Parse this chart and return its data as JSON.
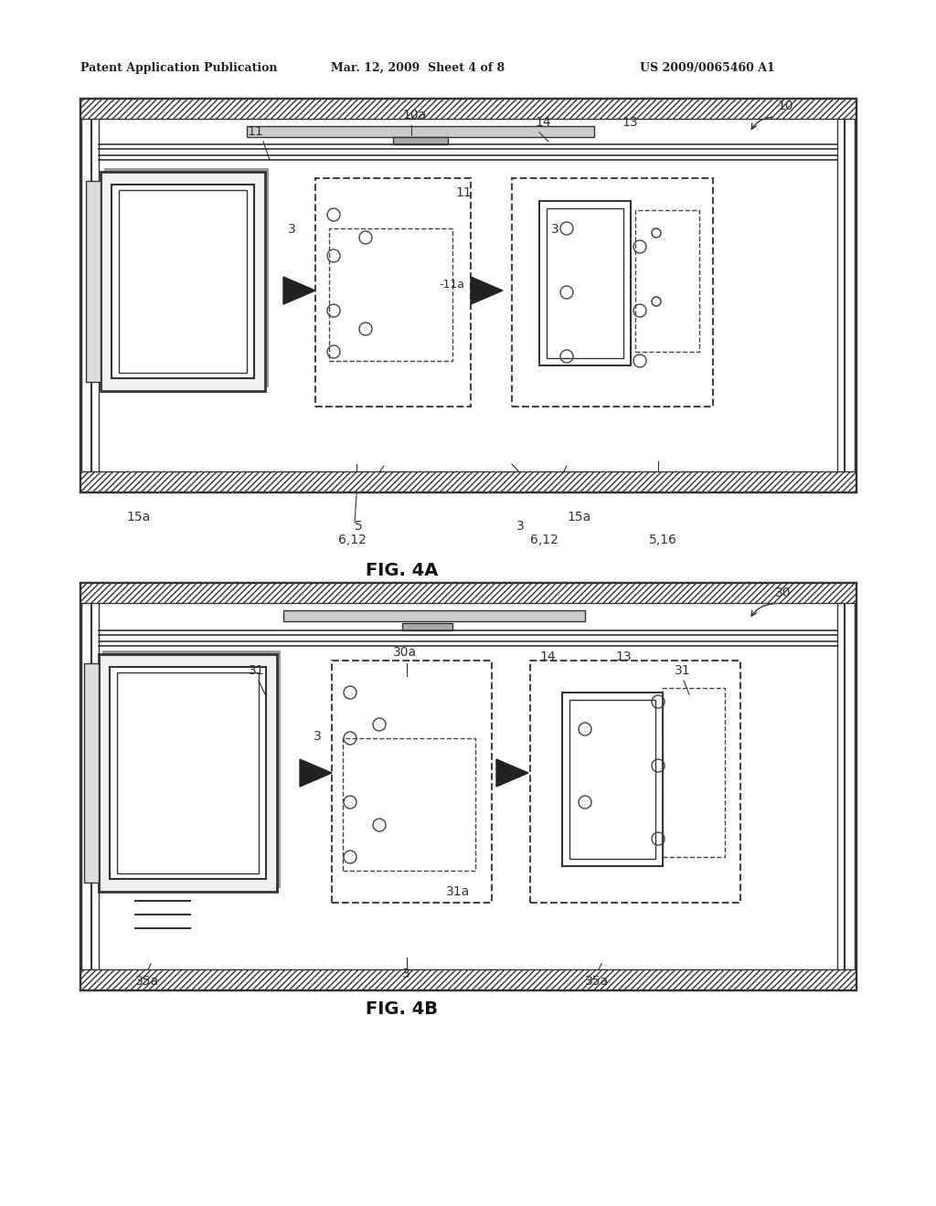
{
  "page_width": 10.24,
  "page_height": 13.2,
  "bg_color": "#ffffff",
  "header_text": "Patent Application Publication",
  "header_date": "Mar. 12, 2009  Sheet 4 of 8",
  "header_patent": "US 2009/0065460 A1",
  "fig_a_label": "FIG. 4A",
  "fig_b_label": "FIG. 4B",
  "line_color": "#333333",
  "hatch_color": "#555555",
  "dashed_color": "#444444"
}
